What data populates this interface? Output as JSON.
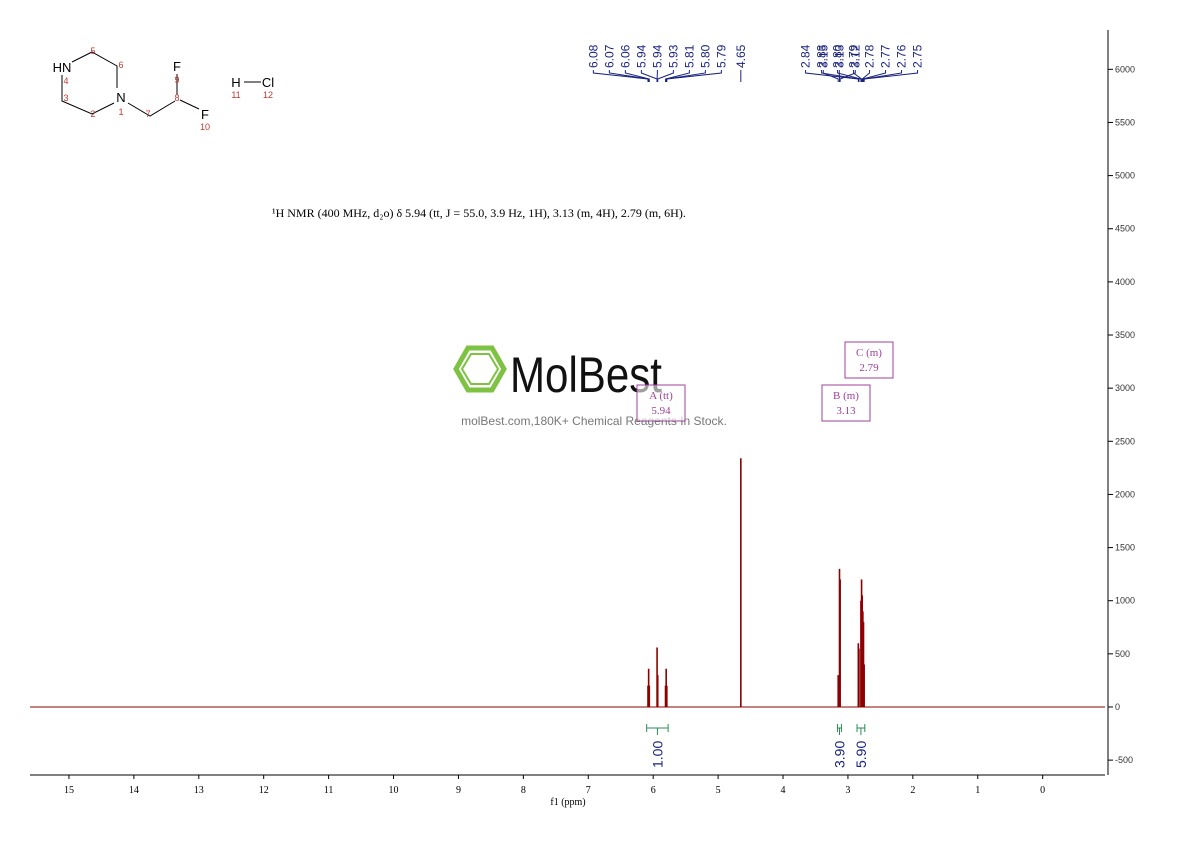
{
  "chart_data": {
    "type": "spectrum",
    "annotation": "¹H NMR (400 MHz, d₂o) δ 5.94 (tt, J = 55.0, 3.9 Hz, 1H), 3.13 (m, 4H), 2.79 (m, 6H).",
    "x": [
      6.08,
      6.07,
      6.06,
      5.94,
      5.93,
      5.81,
      5.8,
      5.79,
      4.65,
      3.15,
      3.13,
      3.12,
      2.84,
      2.83,
      2.8,
      2.79,
      2.78,
      2.77,
      2.76,
      2.75
    ],
    "values": [
      200,
      360,
      200,
      560,
      300,
      200,
      360,
      200,
      2340,
      300,
      1300,
      1200,
      600,
      550,
      1000,
      1200,
      1050,
      900,
      800,
      400
    ],
    "color": "#8b0000",
    "xlabel": "f1 (ppm)",
    "xlim": [
      15.6,
      -0.96
    ],
    "xticks": [
      15,
      14,
      13,
      12,
      11,
      10,
      9,
      8,
      7,
      6,
      5,
      4,
      3,
      2,
      1,
      0
    ],
    "ylim": [
      -640,
      6370
    ],
    "yticks": [
      -500,
      0,
      500,
      1000,
      1500,
      2000,
      2500,
      3000,
      3500,
      4000,
      4500,
      5000,
      5500,
      6000
    ],
    "peak_labels": [
      {
        "value": 6.08,
        "label": "6.08"
      },
      {
        "value": 6.07,
        "label": "6.07"
      },
      {
        "value": 6.06,
        "label": "6.06"
      },
      {
        "value": 5.94,
        "label": "5.94"
      },
      {
        "value": 5.94,
        "label": "5.94"
      },
      {
        "value": 5.93,
        "label": "5.93"
      },
      {
        "value": 5.81,
        "label": "5.81"
      },
      {
        "value": 5.8,
        "label": "5.80"
      },
      {
        "value": 5.79,
        "label": "5.79"
      },
      {
        "value": 4.65,
        "label": "4.65"
      },
      {
        "value": 3.15,
        "label": "3.15"
      },
      {
        "value": 3.13,
        "label": "3.13"
      },
      {
        "value": 3.12,
        "label": "3.12"
      },
      {
        "value": 2.84,
        "label": "2.84"
      },
      {
        "value": 2.83,
        "label": "2.83"
      },
      {
        "value": 2.8,
        "label": "2.80"
      },
      {
        "value": 2.79,
        "label": "2.79"
      },
      {
        "value": 2.78,
        "label": "2.78"
      },
      {
        "value": 2.77,
        "label": "2.77"
      },
      {
        "value": 2.76,
        "label": "2.76"
      },
      {
        "value": 2.75,
        "label": "2.75"
      }
    ],
    "integrals": [
      {
        "range": [
          6.1,
          5.77
        ],
        "value": 1,
        "label": "1.00"
      },
      {
        "range": [
          3.16,
          3.1
        ],
        "value": 3.9,
        "label": "3.90"
      },
      {
        "range": [
          2.86,
          2.74
        ],
        "value": 5.9,
        "label": "5.90"
      }
    ],
    "multiplets": [
      {
        "name": "A (tt)",
        "shift": 5.94
      },
      {
        "name": "B (m)",
        "shift": 3.13
      },
      {
        "name": "C (m)",
        "shift": 2.79
      }
    ]
  },
  "structure": {
    "atoms": [
      "HN",
      "N",
      "F",
      "F",
      "H",
      "Cl"
    ],
    "atom_numbers": [
      5,
      6,
      4,
      3,
      1,
      2,
      7,
      9,
      8,
      10,
      11,
      12
    ]
  },
  "watermark": {
    "brand": "MolBest",
    "tagline": "molBest.com,180K+ Chemical Reagents In Stock."
  }
}
